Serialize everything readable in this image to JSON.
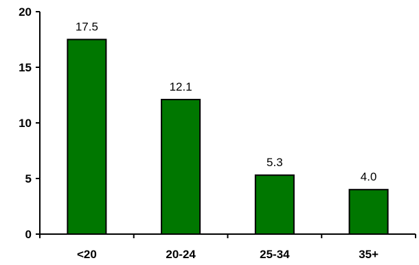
{
  "chart_data": {
    "type": "bar",
    "categories": [
      "<20",
      "20-24",
      "25-34",
      "35+"
    ],
    "values": [
      17.5,
      12.1,
      5.3,
      4.0
    ],
    "data_labels": [
      "17.5",
      "12.1",
      "5.3",
      "4.0"
    ],
    "title": "",
    "xlabel": "",
    "ylabel": "",
    "ylim": [
      0,
      20
    ],
    "yticks": [
      0,
      5,
      10,
      15,
      20
    ],
    "grid": false,
    "legend": "none",
    "bar_color": "#007700",
    "bar_edge_color": "#000000"
  }
}
